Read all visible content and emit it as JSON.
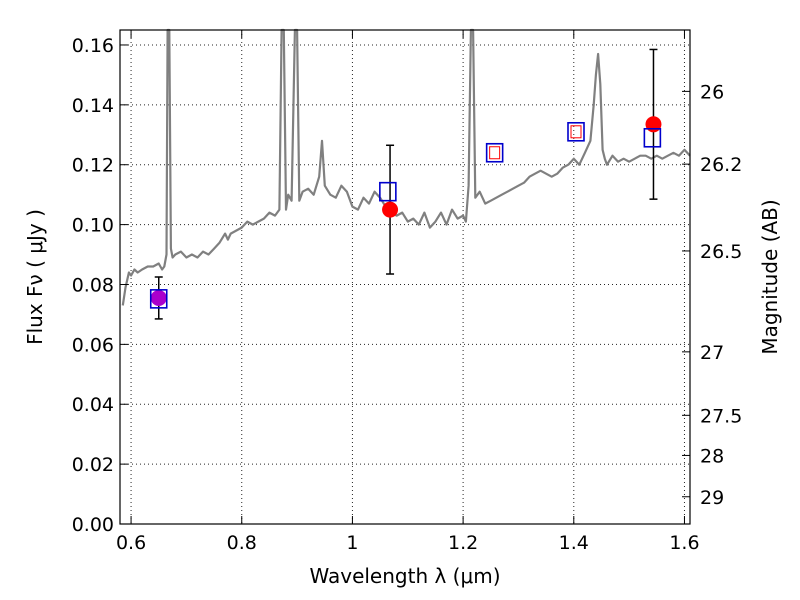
{
  "chart_data": {
    "type": "line",
    "xlabel": "Wavelength  λ (μm)",
    "ylabel": "Flux  Fν  ( μJy )",
    "ylabel_right": "Magnitude (AB)",
    "xlim": [
      0.58,
      1.61
    ],
    "ylim": [
      0.0,
      0.165
    ],
    "grid": true,
    "x_ticks": [
      0.6,
      0.8,
      1.0,
      1.2,
      1.4,
      1.6
    ],
    "x_tick_labels": [
      "0.6",
      "0.8",
      "1",
      "1.2",
      "1.4",
      "1.6"
    ],
    "y_ticks": [
      0.0,
      0.02,
      0.04,
      0.06,
      0.08,
      0.1,
      0.12,
      0.14,
      0.16
    ],
    "y_tick_labels": [
      "0.00",
      "0.02",
      "0.04",
      "0.06",
      "0.08",
      "0.10",
      "0.12",
      "0.14",
      "0.16"
    ],
    "right_ticks": [
      {
        "label": "26",
        "flux": 0.1445
      },
      {
        "label": "26.2",
        "flux": 0.1202
      },
      {
        "label": "26.5",
        "flux": 0.0912
      },
      {
        "label": "27",
        "flux": 0.0575
      },
      {
        "label": "27.5",
        "flux": 0.0363
      },
      {
        "label": "28",
        "flux": 0.0229
      },
      {
        "label": "29",
        "flux": 0.0091
      }
    ],
    "colors": {
      "sed": "#808080",
      "observed": "#ff0000",
      "model": "#0000cc",
      "errorbar": "#000000",
      "overlap": "#aa00cc"
    },
    "sed_curve": {
      "x": [
        0.585,
        0.59,
        0.596,
        0.6,
        0.606,
        0.612,
        0.62,
        0.63,
        0.64,
        0.65,
        0.656,
        0.66,
        0.664,
        0.666,
        0.669,
        0.672,
        0.675,
        0.68,
        0.69,
        0.7,
        0.71,
        0.72,
        0.73,
        0.74,
        0.75,
        0.76,
        0.77,
        0.775,
        0.78,
        0.79,
        0.8,
        0.81,
        0.82,
        0.83,
        0.84,
        0.85,
        0.86,
        0.868,
        0.872,
        0.876,
        0.88,
        0.884,
        0.89,
        0.896,
        0.9,
        0.904,
        0.91,
        0.92,
        0.93,
        0.94,
        0.945,
        0.95,
        0.96,
        0.97,
        0.98,
        0.99,
        1.0,
        1.01,
        1.02,
        1.03,
        1.04,
        1.05,
        1.06,
        1.07,
        1.08,
        1.09,
        1.1,
        1.11,
        1.12,
        1.13,
        1.14,
        1.15,
        1.16,
        1.17,
        1.18,
        1.19,
        1.2,
        1.205,
        1.21,
        1.214,
        1.218,
        1.222,
        1.23,
        1.24,
        1.25,
        1.26,
        1.27,
        1.28,
        1.29,
        1.3,
        1.31,
        1.32,
        1.33,
        1.34,
        1.35,
        1.36,
        1.37,
        1.38,
        1.39,
        1.4,
        1.41,
        1.42,
        1.43,
        1.436,
        1.44,
        1.444,
        1.448,
        1.452,
        1.456,
        1.46,
        1.47,
        1.48,
        1.49,
        1.5,
        1.51,
        1.52,
        1.53,
        1.54,
        1.55,
        1.56,
        1.57,
        1.58,
        1.59,
        1.6,
        1.61
      ],
      "y": [
        0.073,
        0.079,
        0.084,
        0.083,
        0.085,
        0.084,
        0.085,
        0.086,
        0.086,
        0.087,
        0.085,
        0.086,
        0.09,
        0.165,
        0.165,
        0.092,
        0.089,
        0.09,
        0.091,
        0.089,
        0.09,
        0.089,
        0.091,
        0.09,
        0.092,
        0.094,
        0.097,
        0.095,
        0.097,
        0.098,
        0.099,
        0.101,
        0.1,
        0.101,
        0.102,
        0.104,
        0.103,
        0.105,
        0.165,
        0.165,
        0.105,
        0.11,
        0.108,
        0.165,
        0.165,
        0.108,
        0.111,
        0.112,
        0.11,
        0.116,
        0.128,
        0.113,
        0.11,
        0.109,
        0.113,
        0.111,
        0.106,
        0.105,
        0.109,
        0.107,
        0.111,
        0.109,
        0.106,
        0.104,
        0.103,
        0.104,
        0.101,
        0.102,
        0.1,
        0.104,
        0.099,
        0.101,
        0.104,
        0.1,
        0.105,
        0.102,
        0.103,
        0.101,
        0.113,
        0.165,
        0.165,
        0.109,
        0.111,
        0.107,
        0.108,
        0.109,
        0.11,
        0.111,
        0.112,
        0.113,
        0.114,
        0.116,
        0.117,
        0.118,
        0.117,
        0.116,
        0.117,
        0.119,
        0.12,
        0.122,
        0.12,
        0.124,
        0.128,
        0.14,
        0.15,
        0.157,
        0.147,
        0.125,
        0.122,
        0.12,
        0.123,
        0.121,
        0.122,
        0.121,
        0.122,
        0.123,
        0.123,
        0.122,
        0.123,
        0.122,
        0.123,
        0.124,
        0.123,
        0.125,
        0.123
      ]
    },
    "observed_points": [
      {
        "x": 0.65,
        "y": 0.0755,
        "err": 0.007
      },
      {
        "x": 1.068,
        "y": 0.105,
        "err": 0.0215
      },
      {
        "x": 1.544,
        "y": 0.1335,
        "err": 0.025
      }
    ],
    "model_points": [
      {
        "x": 0.65,
        "y": 0.0752
      },
      {
        "x": 1.064,
        "y": 0.111
      },
      {
        "x": 1.257,
        "y": 0.124
      },
      {
        "x": 1.404,
        "y": 0.131
      },
      {
        "x": 1.542,
        "y": 0.129
      }
    ],
    "small_red_squares": [
      {
        "x": 1.257,
        "y": 0.124
      },
      {
        "x": 1.404,
        "y": 0.131
      }
    ]
  }
}
